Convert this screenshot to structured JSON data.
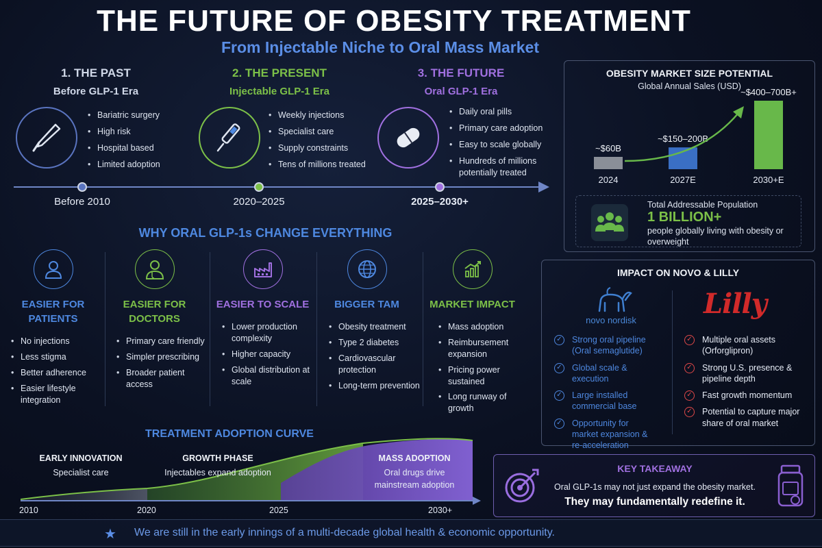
{
  "header": {
    "title": "THE FUTURE OF OBESITY TREATMENT",
    "subtitle": "From Injectable Niche to Oral Mass Market"
  },
  "eras": [
    {
      "heading": "1. THE PAST",
      "subheading": "Before GLP-1 Era",
      "color": "#d0d8e8",
      "icon": "scalpel-icon",
      "bullets": [
        "Bariatric surgery",
        "High risk",
        "Hospital based",
        "Limited adoption"
      ],
      "timeline_label": "Before 2010"
    },
    {
      "heading": "2. THE PRESENT",
      "subheading": "Injectable GLP-1 Era",
      "color": "#7cc048",
      "icon": "injection-pen-icon",
      "bullets": [
        "Weekly injections",
        "Specialist care",
        "Supply constraints",
        "Tens of millions treated"
      ],
      "timeline_label": "2020–2025"
    },
    {
      "heading": "3. THE FUTURE",
      "subheading": "Oral GLP-1 Era",
      "color": "#a070e0",
      "icon": "pill-icon",
      "bullets": [
        "Daily oral pills",
        "Primary care adoption",
        "Easy to scale globally",
        "Hundreds of millions potentially treated"
      ],
      "timeline_label": "2025–2030+"
    }
  ],
  "market": {
    "title": "OBESITY MARKET SIZE POTENTIAL",
    "subtitle": "Global Annual Sales (USD)",
    "population_label": "Total Addressable Population",
    "population_value": "1 BILLION+",
    "population_desc": "people globally living with obesity or overweight"
  },
  "chart_data": {
    "type": "bar",
    "categories": [
      "2024",
      "2027E",
      "2030+E"
    ],
    "values": [
      60,
      175,
      550
    ],
    "data_labels": [
      "~$60B",
      "~$150–200B",
      "~$400–700B+"
    ],
    "colors": [
      "#8a8f98",
      "#3a6fc4",
      "#68b84a"
    ]
  },
  "why": {
    "title": "WHY ORAL GLP-1s CHANGE EVERYTHING",
    "columns": [
      {
        "heading": "EASIER FOR PATIENTS",
        "icon": "person-icon",
        "color": "#4e88e0",
        "bullets": [
          "No injections",
          "Less stigma",
          "Better adherence",
          "Easier lifestyle integration"
        ]
      },
      {
        "heading": "EASIER FOR DOCTORS",
        "icon": "doctor-icon",
        "color": "#7cc048",
        "bullets": [
          "Primary care friendly",
          "Simpler prescribing",
          "Broader patient access"
        ]
      },
      {
        "heading": "EASIER TO SCALE",
        "icon": "factory-icon",
        "color": "#a070e0",
        "bullets": [
          "Lower production complexity",
          "Higher capacity",
          "Global distribution at scale"
        ]
      },
      {
        "heading": "BIGGER TAM",
        "icon": "globe-icon",
        "color": "#4e88e0",
        "bullets": [
          "Obesity treatment",
          "Type 2 diabetes",
          "Cardiovascular protection",
          "Long-term prevention"
        ]
      },
      {
        "heading": "MARKET IMPACT",
        "icon": "growth-chart-icon",
        "color": "#7cc048",
        "bullets": [
          "Mass adoption",
          "Reimbursement expansion",
          "Pricing power sustained",
          "Long runway of growth"
        ]
      }
    ]
  },
  "impact": {
    "title": "IMPACT ON NOVO & LILLY",
    "novo": {
      "logo_text": "novo nordisk",
      "items": [
        "Strong oral pipeline (Oral semaglutide)",
        "Global scale & execution",
        "Large installed commercial base",
        "Opportunity for market expansion & re-acceleration"
      ]
    },
    "lilly": {
      "logo_text": "Lilly",
      "items": [
        "Multiple oral assets (Orforglipron)",
        "Strong U.S. presence & pipeline depth",
        "Fast growth momentum",
        "Potential to capture major share of oral market"
      ]
    }
  },
  "adoption": {
    "title": "TREATMENT ADOPTION CURVE",
    "phases": [
      {
        "title": "EARLY INNOVATION",
        "desc": "Specialist care"
      },
      {
        "title": "GROWTH PHASE",
        "desc": "Injectables expand adoption"
      },
      {
        "title": "MASS ADOPTION",
        "desc": "Oral drugs drive mainstream adoption"
      }
    ],
    "years": [
      "2010",
      "2020",
      "2025",
      "2030+"
    ]
  },
  "takeaway": {
    "title": "KEY TAKEAWAY",
    "line1": "Oral GLP-1s may not just expand the obesity market.",
    "line2": "They may fundamentally redefine it."
  },
  "footer": {
    "text": "We are still in the early innings of a multi-decade global health & economic opportunity."
  }
}
